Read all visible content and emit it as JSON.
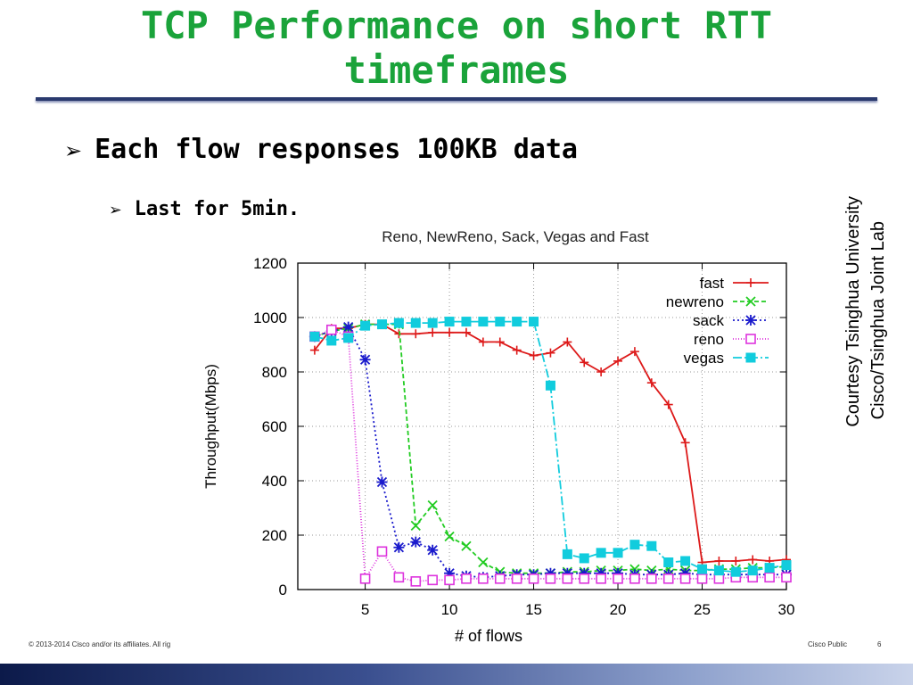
{
  "slide": {
    "title_line1": "TCP Performance on short RTT",
    "title_line2": "timeframes",
    "bullet1": "Each flow responses 100KB data",
    "bullet2": "Last for 5min.",
    "courtesy_line1": "Courtesy Tsinghua University",
    "courtesy_line2": "Cisco/Tsinghua Joint Lab",
    "footer_left": "© 2013-2014  Cisco and/or its affiliates. All rig",
    "footer_right": "Cisco Public",
    "page_number": "6"
  },
  "chart_data": {
    "type": "line",
    "title": "Reno, NewReno, Sack, Vegas and Fast",
    "xlabel": "# of flows",
    "ylabel": "Throughput(Mbps)",
    "xlim": [
      1,
      30
    ],
    "ylim": [
      0,
      1200
    ],
    "xticks": [
      5,
      10,
      15,
      20,
      25,
      30
    ],
    "yticks": [
      0,
      200,
      400,
      600,
      800,
      1000,
      1200
    ],
    "grid": true,
    "legend_position": "top-right",
    "series": [
      {
        "name": "fast",
        "color": "#dd1a1a",
        "marker": "plus",
        "dash": "",
        "x": [
          2,
          3,
          4,
          5,
          6,
          7,
          8,
          9,
          10,
          11,
          12,
          13,
          14,
          15,
          16,
          17,
          18,
          19,
          20,
          21,
          22,
          23,
          24,
          25,
          26,
          27,
          28,
          29,
          30
        ],
        "y": [
          880,
          960,
          960,
          975,
          975,
          940,
          940,
          945,
          945,
          945,
          910,
          910,
          880,
          860,
          870,
          910,
          835,
          800,
          840,
          875,
          760,
          680,
          540,
          100,
          105,
          105,
          110,
          105,
          110
        ]
      },
      {
        "name": "newreno",
        "color": "#22cc22",
        "marker": "x",
        "dash": "5,3",
        "x": [
          2,
          3,
          4,
          5,
          6,
          7,
          8,
          9,
          10,
          11,
          12,
          13,
          14,
          15,
          16,
          17,
          18,
          19,
          20,
          21,
          22,
          23,
          24,
          25,
          26,
          27,
          28,
          29,
          30
        ],
        "y": [
          930,
          950,
          960,
          975,
          975,
          975,
          235,
          310,
          195,
          160,
          100,
          65,
          60,
          60,
          60,
          65,
          65,
          70,
          70,
          75,
          70,
          75,
          70,
          70,
          75,
          75,
          80,
          80,
          85
        ]
      },
      {
        "name": "sack",
        "color": "#1a1acc",
        "marker": "star",
        "dash": "2,3",
        "x": [
          2,
          3,
          4,
          5,
          6,
          7,
          8,
          9,
          10,
          11,
          12,
          13,
          14,
          15,
          16,
          17,
          18,
          19,
          20,
          21,
          22,
          23,
          24,
          25,
          26,
          27,
          28,
          29,
          30
        ],
        "y": [
          930,
          950,
          965,
          845,
          395,
          155,
          175,
          145,
          60,
          50,
          45,
          50,
          55,
          55,
          60,
          60,
          60,
          60,
          60,
          55,
          55,
          55,
          60,
          55,
          55,
          55,
          55,
          55,
          55
        ]
      },
      {
        "name": "reno",
        "color": "#dd33dd",
        "marker": "square",
        "dash": "1,2",
        "x": [
          2,
          3,
          4,
          5,
          6,
          7,
          8,
          9,
          10,
          11,
          12,
          13,
          14,
          15,
          16,
          17,
          18,
          19,
          20,
          21,
          22,
          23,
          24,
          25,
          26,
          27,
          28,
          29,
          30
        ],
        "y": [
          930,
          955,
          930,
          40,
          140,
          45,
          30,
          35,
          35,
          40,
          40,
          40,
          40,
          40,
          40,
          40,
          40,
          40,
          40,
          40,
          40,
          40,
          40,
          40,
          40,
          45,
          45,
          45,
          45
        ]
      },
      {
        "name": "vegas",
        "color": "#11ccdd",
        "marker": "filled-square",
        "dash": "10,3,2,3",
        "x": [
          2,
          3,
          4,
          5,
          6,
          7,
          8,
          9,
          10,
          11,
          12,
          13,
          14,
          15,
          16,
          17,
          18,
          19,
          20,
          21,
          22,
          23,
          24,
          25,
          26,
          27,
          28,
          29,
          30
        ],
        "y": [
          930,
          915,
          925,
          970,
          975,
          980,
          980,
          980,
          985,
          985,
          985,
          985,
          985,
          985,
          750,
          130,
          115,
          135,
          135,
          165,
          160,
          100,
          105,
          75,
          70,
          65,
          70,
          80,
          90
        ]
      }
    ]
  }
}
